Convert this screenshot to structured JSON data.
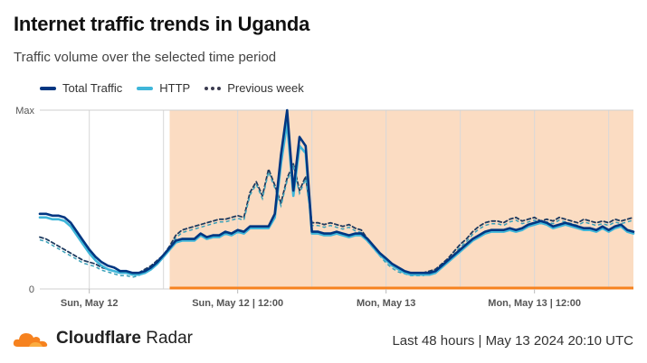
{
  "header": {
    "title": "Internet traffic trends in Uganda",
    "subtitle": "Traffic volume over the selected time period"
  },
  "legend": {
    "total": "Total Traffic",
    "http": "HTTP",
    "previous": "Previous week"
  },
  "footer": {
    "brand": "Cloudflare",
    "product": "Radar",
    "range": "Last 48 hours | May 13 2024 20:10 UTC"
  },
  "colors": {
    "total": "#003681",
    "http": "#3fb6d9",
    "previous_total": "#1e3a5f",
    "previous_http": "#3aa0b8",
    "highlight": "#fbdcc2",
    "highlight_line": "#f6821f",
    "logo": "#f6821f"
  },
  "chart_data": {
    "type": "line",
    "x_unit": "hours",
    "xlim": [
      0,
      48
    ],
    "ylim": [
      0,
      1
    ],
    "y_tick_labels": [
      {
        "value": 1,
        "label": "Max"
      },
      {
        "value": 0,
        "label": "0"
      }
    ],
    "x_tick_labels": [
      {
        "x": 4,
        "label": "Sun, May 12"
      },
      {
        "x": 16,
        "label": "Sun, May 12 | 12:00"
      },
      {
        "x": 28,
        "label": "Mon, May 13"
      },
      {
        "x": 40,
        "label": "Mon, May 13 | 12:00"
      }
    ],
    "gridlines_x": [
      4,
      10,
      16,
      22,
      28,
      34,
      40,
      46
    ],
    "highlight_range": [
      10.5,
      48
    ],
    "series": [
      {
        "name": "Total Traffic",
        "style": "solid",
        "x": [
          0,
          0.5,
          1,
          1.5,
          2,
          2.5,
          3,
          3.5,
          4,
          4.5,
          5,
          5.5,
          6,
          6.5,
          7,
          7.5,
          8,
          8.5,
          9,
          9.5,
          10,
          10.5,
          11,
          11.5,
          12,
          12.5,
          13,
          13.5,
          14,
          14.5,
          15,
          15.5,
          16,
          16.5,
          17,
          17.5,
          18,
          18.5,
          19,
          19.5,
          20,
          20.5,
          21,
          21.5,
          22,
          22.5,
          23,
          23.5,
          24,
          24.5,
          25,
          25.5,
          26,
          26.5,
          27,
          27.5,
          28,
          28.5,
          29,
          29.5,
          30,
          30.5,
          31,
          31.5,
          32,
          32.5,
          33,
          33.5,
          34,
          34.5,
          35,
          35.5,
          36,
          36.5,
          37,
          37.5,
          38,
          38.5,
          39,
          39.5,
          40,
          40.5,
          41,
          41.5,
          42,
          42.5,
          43,
          43.5,
          44,
          44.5,
          45,
          45.5,
          46,
          46.5,
          47,
          47.5,
          48
        ],
        "y": [
          0.42,
          0.42,
          0.41,
          0.41,
          0.4,
          0.37,
          0.32,
          0.27,
          0.22,
          0.18,
          0.15,
          0.13,
          0.12,
          0.1,
          0.1,
          0.09,
          0.09,
          0.1,
          0.12,
          0.15,
          0.19,
          0.23,
          0.27,
          0.28,
          0.28,
          0.28,
          0.31,
          0.29,
          0.3,
          0.3,
          0.32,
          0.31,
          0.33,
          0.32,
          0.35,
          0.35,
          0.35,
          0.35,
          0.42,
          0.75,
          1.0,
          0.55,
          0.85,
          0.8,
          0.32,
          0.32,
          0.31,
          0.31,
          0.32,
          0.31,
          0.3,
          0.31,
          0.31,
          0.28,
          0.24,
          0.2,
          0.17,
          0.14,
          0.12,
          0.1,
          0.09,
          0.09,
          0.09,
          0.09,
          0.1,
          0.13,
          0.16,
          0.19,
          0.22,
          0.25,
          0.28,
          0.3,
          0.32,
          0.33,
          0.33,
          0.33,
          0.34,
          0.33,
          0.34,
          0.36,
          0.37,
          0.38,
          0.37,
          0.35,
          0.36,
          0.37,
          0.36,
          0.35,
          0.34,
          0.34,
          0.33,
          0.35,
          0.33,
          0.35,
          0.36,
          0.33,
          0.32
        ]
      },
      {
        "name": "HTTP",
        "style": "solid",
        "x": [
          0,
          0.5,
          1,
          1.5,
          2,
          2.5,
          3,
          3.5,
          4,
          4.5,
          5,
          5.5,
          6,
          6.5,
          7,
          7.5,
          8,
          8.5,
          9,
          9.5,
          10,
          10.5,
          11,
          11.5,
          12,
          12.5,
          13,
          13.5,
          14,
          14.5,
          15,
          15.5,
          16,
          16.5,
          17,
          17.5,
          18,
          18.5,
          19,
          19.5,
          20,
          20.5,
          21,
          21.5,
          22,
          22.5,
          23,
          23.5,
          24,
          24.5,
          25,
          25.5,
          26,
          26.5,
          27,
          27.5,
          28,
          28.5,
          29,
          29.5,
          30,
          30.5,
          31,
          31.5,
          32,
          32.5,
          33,
          33.5,
          34,
          34.5,
          35,
          35.5,
          36,
          36.5,
          37,
          37.5,
          38,
          38.5,
          39,
          39.5,
          40,
          40.5,
          41,
          41.5,
          42,
          42.5,
          43,
          43.5,
          44,
          44.5,
          45,
          45.5,
          46,
          46.5,
          47,
          47.5,
          48
        ],
        "y": [
          0.4,
          0.4,
          0.39,
          0.39,
          0.38,
          0.35,
          0.3,
          0.25,
          0.2,
          0.16,
          0.13,
          0.11,
          0.1,
          0.09,
          0.09,
          0.08,
          0.08,
          0.09,
          0.11,
          0.14,
          0.18,
          0.22,
          0.26,
          0.27,
          0.27,
          0.27,
          0.3,
          0.28,
          0.29,
          0.29,
          0.31,
          0.3,
          0.32,
          0.31,
          0.34,
          0.34,
          0.34,
          0.34,
          0.4,
          0.7,
          0.93,
          0.52,
          0.8,
          0.76,
          0.31,
          0.31,
          0.3,
          0.3,
          0.31,
          0.3,
          0.29,
          0.3,
          0.3,
          0.27,
          0.23,
          0.19,
          0.16,
          0.13,
          0.11,
          0.09,
          0.08,
          0.08,
          0.08,
          0.08,
          0.09,
          0.12,
          0.15,
          0.18,
          0.21,
          0.24,
          0.27,
          0.29,
          0.31,
          0.32,
          0.32,
          0.32,
          0.33,
          0.32,
          0.33,
          0.35,
          0.36,
          0.37,
          0.36,
          0.34,
          0.35,
          0.36,
          0.35,
          0.34,
          0.33,
          0.33,
          0.32,
          0.34,
          0.32,
          0.34,
          0.35,
          0.32,
          0.31
        ]
      },
      {
        "name": "Previous week",
        "style": "dotted",
        "x": [
          0,
          0.5,
          1,
          1.5,
          2,
          2.5,
          3,
          3.5,
          4,
          4.5,
          5,
          5.5,
          6,
          6.5,
          7,
          7.5,
          8,
          8.5,
          9,
          9.5,
          10,
          10.5,
          11,
          11.5,
          12,
          12.5,
          13,
          13.5,
          14,
          14.5,
          15,
          15.5,
          16,
          16.5,
          17,
          17.5,
          18,
          18.5,
          19,
          19.5,
          20,
          20.5,
          21,
          21.5,
          22,
          22.5,
          23,
          23.5,
          24,
          24.5,
          25,
          25.5,
          26,
          26.5,
          27,
          27.5,
          28,
          28.5,
          29,
          29.5,
          30,
          30.5,
          31,
          31.5,
          32,
          32.5,
          33,
          33.5,
          34,
          34.5,
          35,
          35.5,
          36,
          36.5,
          37,
          37.5,
          38,
          38.5,
          39,
          39.5,
          40,
          40.5,
          41,
          41.5,
          42,
          42.5,
          43,
          43.5,
          44,
          44.5,
          45,
          45.5,
          46,
          46.5,
          47,
          47.5,
          48
        ],
        "y": [
          0.29,
          0.28,
          0.26,
          0.24,
          0.22,
          0.2,
          0.18,
          0.16,
          0.15,
          0.14,
          0.12,
          0.11,
          0.1,
          0.09,
          0.09,
          0.08,
          0.09,
          0.11,
          0.13,
          0.16,
          0.19,
          0.24,
          0.3,
          0.33,
          0.34,
          0.35,
          0.36,
          0.37,
          0.38,
          0.39,
          0.39,
          0.4,
          0.41,
          0.4,
          0.54,
          0.6,
          0.52,
          0.67,
          0.58,
          0.48,
          0.62,
          0.7,
          0.55,
          0.63,
          0.37,
          0.37,
          0.36,
          0.37,
          0.36,
          0.35,
          0.36,
          0.34,
          0.33,
          0.28,
          0.24,
          0.2,
          0.16,
          0.13,
          0.11,
          0.1,
          0.09,
          0.09,
          0.09,
          0.1,
          0.11,
          0.14,
          0.17,
          0.21,
          0.25,
          0.28,
          0.32,
          0.35,
          0.37,
          0.38,
          0.38,
          0.37,
          0.39,
          0.4,
          0.38,
          0.39,
          0.4,
          0.38,
          0.39,
          0.38,
          0.4,
          0.39,
          0.38,
          0.37,
          0.39,
          0.38,
          0.37,
          0.38,
          0.37,
          0.39,
          0.38,
          0.39,
          0.4
        ]
      }
    ]
  }
}
